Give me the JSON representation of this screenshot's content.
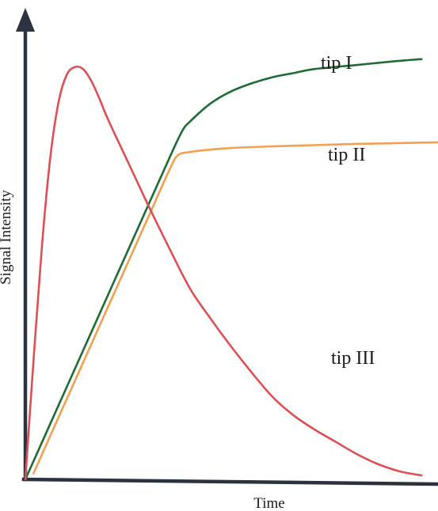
{
  "chart_data": {
    "type": "line",
    "title": "",
    "xlabel": "Time",
    "ylabel": "Signal Intensity",
    "xlim": [
      0,
      100
    ],
    "ylim": [
      0,
      100
    ],
    "grid": false,
    "legend": "none",
    "axis_color": "#2b3340",
    "series": [
      {
        "name": "tip I",
        "color": "#1e6b35",
        "x": [
          0,
          5,
          10,
          15,
          20,
          25,
          30,
          35,
          38,
          40,
          45,
          50,
          55,
          60,
          65,
          70,
          80,
          90,
          96
        ],
        "y": [
          0,
          11.5,
          23,
          34.5,
          46,
          57.5,
          69,
          80.5,
          87,
          89.5,
          94,
          97,
          99,
          100.5,
          101.5,
          102.5,
          103.5,
          104.5,
          105
        ]
      },
      {
        "name": "tip II",
        "color": "#f0a050",
        "x": [
          2,
          5,
          10,
          15,
          20,
          25,
          30,
          35,
          37,
          40,
          45,
          50,
          60,
          70,
          80,
          90,
          100
        ],
        "y": [
          1.5,
          8.5,
          20,
          31.5,
          43,
          54.5,
          66,
          77.5,
          81,
          81.8,
          82.4,
          82.8,
          83.2,
          83.5,
          83.8,
          84,
          84.2
        ]
      },
      {
        "name": "tip III",
        "color": "#dd4f55",
        "x": [
          0,
          2,
          4,
          6,
          8,
          10,
          12,
          14,
          16,
          18,
          20,
          25,
          30,
          35,
          40,
          45,
          50,
          55,
          60,
          65,
          70,
          75,
          80,
          85,
          90,
          93,
          96
        ],
        "y": [
          0,
          30,
          58,
          80,
          94,
          101,
          103,
          102.5,
          99.5,
          95,
          90,
          79,
          68,
          57.5,
          47.5,
          40,
          33,
          26.5,
          20.5,
          16,
          12.5,
          9.5,
          6.5,
          4,
          2.2,
          1.5,
          1.0
        ]
      }
    ]
  }
}
